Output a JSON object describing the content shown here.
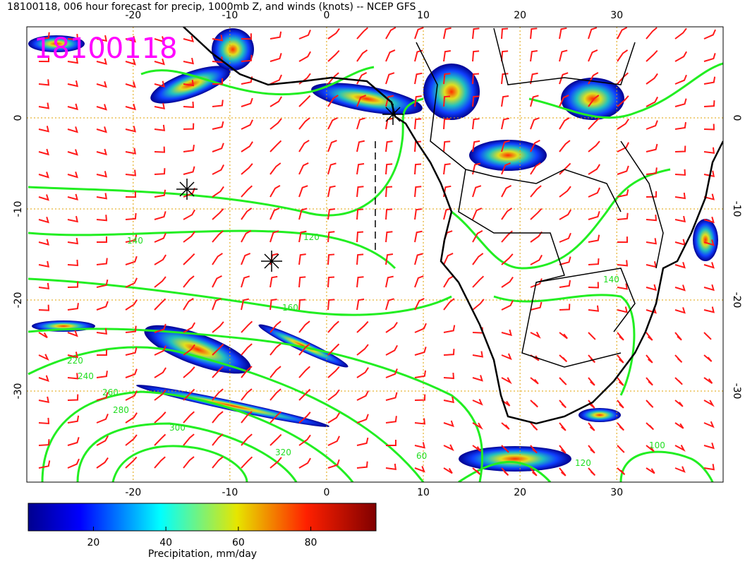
{
  "header": {
    "title": "18100118, 006 hour forecast for precip, 1000mb Z, and winds (knots) -- NCEP GFS"
  },
  "stamp": "18100118",
  "map": {
    "lon_range": [
      -31,
      41
    ],
    "lat_range": [
      10,
      -40
    ],
    "lon_ticks": [
      -20,
      -10,
      0,
      10,
      20,
      30
    ],
    "lat_ticks": [
      0,
      -10,
      -20,
      -30
    ],
    "contour_labels": [
      140,
      120,
      160,
      220,
      240,
      260,
      280,
      300,
      320,
      100,
      120,
      140,
      60
    ]
  },
  "colorbar": {
    "range": [
      2,
      98
    ],
    "ticks": [
      20,
      40,
      60,
      80
    ],
    "label": "Precipitation, mm/day"
  }
}
